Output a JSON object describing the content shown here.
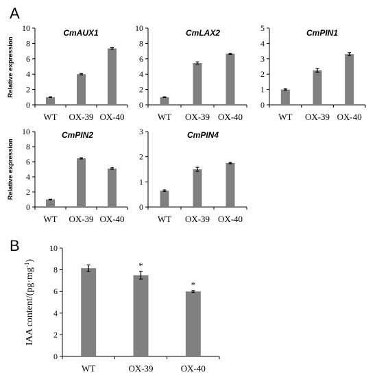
{
  "panel_labels": [
    "A",
    "B"
  ],
  "chart_data": [
    {
      "type": "bar",
      "title": "CmAUX1",
      "ylabel": "Relative expression",
      "categories": [
        "WT",
        "OX-39",
        "OX-40"
      ],
      "values": [
        1.0,
        4.0,
        7.35
      ],
      "errors": [
        0.05,
        0.08,
        0.1
      ],
      "ylim": [
        0,
        10
      ],
      "yticks": [
        0,
        2,
        4,
        6,
        8,
        10
      ]
    },
    {
      "type": "bar",
      "title": "CmLAX2",
      "ylabel": "",
      "categories": [
        "WT",
        "OX-39",
        "OX-40"
      ],
      "values": [
        1.0,
        5.45,
        6.65
      ],
      "errors": [
        0.05,
        0.15,
        0.08
      ],
      "ylim": [
        0,
        10
      ],
      "yticks": [
        0,
        2,
        4,
        6,
        8,
        10
      ]
    },
    {
      "type": "bar",
      "title": "CmPIN1",
      "ylabel": "",
      "categories": [
        "WT",
        "OX-39",
        "OX-40"
      ],
      "values": [
        1.0,
        2.25,
        3.3
      ],
      "errors": [
        0.04,
        0.12,
        0.1
      ],
      "ylim": [
        0,
        5
      ],
      "yticks": [
        0,
        1,
        2,
        3,
        4,
        5
      ]
    },
    {
      "type": "bar",
      "title": "CmPIN2",
      "ylabel": "Relative expression",
      "categories": [
        "WT",
        "OX-39",
        "OX-40"
      ],
      "values": [
        1.0,
        6.45,
        5.1
      ],
      "errors": [
        0.05,
        0.08,
        0.1
      ],
      "ylim": [
        0,
        10
      ],
      "yticks": [
        0,
        2,
        4,
        6,
        8,
        10
      ]
    },
    {
      "type": "bar",
      "title": "CmPIN4",
      "ylabel": "",
      "categories": [
        "WT",
        "OX-39",
        "OX-40"
      ],
      "values": [
        0.65,
        1.5,
        1.75
      ],
      "errors": [
        0.03,
        0.08,
        0.03
      ],
      "ylim": [
        0,
        3
      ],
      "yticks": [
        0,
        1,
        2,
        3
      ]
    },
    {
      "type": "bar",
      "title": "",
      "ylabel": "IAA content/(pg·mg",
      "ylabel_sup": "-1",
      "ylabel_end": ")",
      "categories": [
        "WT",
        "OX-39",
        "OX-40"
      ],
      "values": [
        8.15,
        7.5,
        6.0
      ],
      "errors": [
        0.3,
        0.35,
        0.08
      ],
      "annotations": [
        "",
        "*",
        "*"
      ],
      "ylim": [
        0,
        10
      ],
      "yticks": [
        0,
        2,
        4,
        6,
        8,
        10
      ]
    }
  ]
}
